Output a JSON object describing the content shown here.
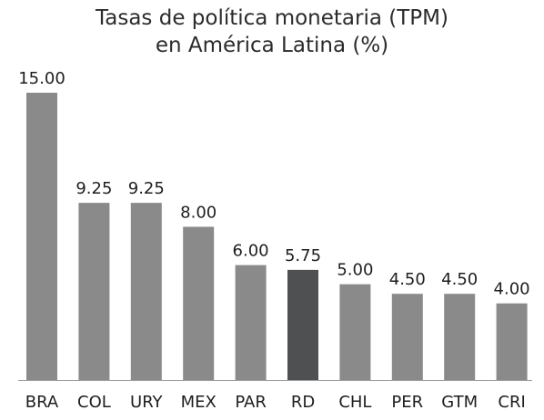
{
  "chart_data": {
    "type": "bar",
    "title": "Tasas de política monetaria (TPM)",
    "subtitle": "en América Latina (%)",
    "xlabel": "",
    "ylabel": "",
    "ylim": [
      0,
      15
    ],
    "grid": false,
    "legend": "none",
    "categories": [
      "BRA",
      "COL",
      "URY",
      "MEX",
      "PAR",
      "RD",
      "CHL",
      "PER",
      "GTM",
      "CRI"
    ],
    "values": [
      15.0,
      9.25,
      9.25,
      8.0,
      6.0,
      5.75,
      5.0,
      4.5,
      4.5,
      4.0
    ],
    "value_labels": [
      "15.00",
      "9.25",
      "9.25",
      "8.00",
      "6.00",
      "5.75",
      "5.00",
      "4.50",
      "4.50",
      "4.00"
    ],
    "colors": {
      "bar": "#8a8a8a",
      "highlight": "#4f5052",
      "axis": "#9a9a9a"
    },
    "highlight_category": "RD"
  }
}
